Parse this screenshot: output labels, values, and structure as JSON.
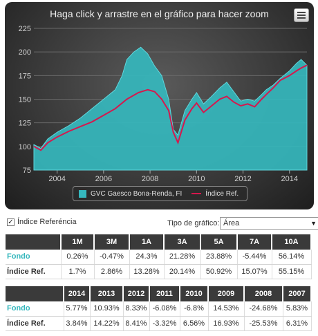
{
  "chart": {
    "title": "Haga click y arrastre en el gráfico para hacer zoom",
    "menu_icon": "hamburger-menu-icon",
    "legend": {
      "series1": "GVC Gaesco Bona-Renda, FI",
      "series2": "Índice Ref."
    },
    "colors": {
      "fund": "#35b7bd",
      "index": "#d6174d"
    }
  },
  "chart_data": {
    "type": "area",
    "y_ticks": [
      "75",
      "100",
      "125",
      "150",
      "175",
      "200",
      "225"
    ],
    "x_ticks": [
      "2004",
      "2006",
      "2008",
      "2010",
      "2012",
      "2014"
    ],
    "ylim": [
      75,
      225
    ],
    "xlim": [
      2003.0,
      2014.75
    ],
    "grid": true,
    "legend_position": "bottom-center",
    "series": [
      {
        "name": "GVC Gaesco Bona-Renda, FI",
        "type": "area",
        "points": [
          [
            2003.0,
            102
          ],
          [
            2003.3,
            98
          ],
          [
            2003.6,
            108
          ],
          [
            2004.0,
            115
          ],
          [
            2004.5,
            122
          ],
          [
            2005.0,
            130
          ],
          [
            2005.5,
            140
          ],
          [
            2006.0,
            150
          ],
          [
            2006.5,
            160
          ],
          [
            2006.8,
            175
          ],
          [
            2007.0,
            192
          ],
          [
            2007.3,
            200
          ],
          [
            2007.6,
            205
          ],
          [
            2007.9,
            198
          ],
          [
            2008.2,
            185
          ],
          [
            2008.5,
            175
          ],
          [
            2008.8,
            150
          ],
          [
            2009.0,
            118
          ],
          [
            2009.2,
            112
          ],
          [
            2009.5,
            138
          ],
          [
            2009.8,
            150
          ],
          [
            2010.0,
            157
          ],
          [
            2010.3,
            145
          ],
          [
            2010.6,
            152
          ],
          [
            2011.0,
            162
          ],
          [
            2011.3,
            168
          ],
          [
            2011.6,
            158
          ],
          [
            2011.9,
            148
          ],
          [
            2012.2,
            150
          ],
          [
            2012.5,
            148
          ],
          [
            2012.8,
            155
          ],
          [
            2013.0,
            160
          ],
          [
            2013.3,
            165
          ],
          [
            2013.6,
            172
          ],
          [
            2014.0,
            180
          ],
          [
            2014.3,
            188
          ],
          [
            2014.5,
            192
          ],
          [
            2014.75,
            186
          ]
        ]
      },
      {
        "name": "Índice Ref.",
        "type": "line",
        "points": [
          [
            2003.0,
            100
          ],
          [
            2003.3,
            96
          ],
          [
            2003.6,
            104
          ],
          [
            2004.0,
            110
          ],
          [
            2004.5,
            116
          ],
          [
            2005.0,
            121
          ],
          [
            2005.5,
            126
          ],
          [
            2006.0,
            133
          ],
          [
            2006.5,
            140
          ],
          [
            2007.0,
            150
          ],
          [
            2007.5,
            157
          ],
          [
            2007.9,
            160
          ],
          [
            2008.2,
            158
          ],
          [
            2008.5,
            150
          ],
          [
            2008.8,
            138
          ],
          [
            2009.0,
            115
          ],
          [
            2009.2,
            104
          ],
          [
            2009.5,
            128
          ],
          [
            2009.8,
            140
          ],
          [
            2010.0,
            146
          ],
          [
            2010.3,
            136
          ],
          [
            2010.6,
            142
          ],
          [
            2011.0,
            150
          ],
          [
            2011.3,
            153
          ],
          [
            2011.6,
            147
          ],
          [
            2011.9,
            143
          ],
          [
            2012.2,
            145
          ],
          [
            2012.5,
            142
          ],
          [
            2012.8,
            150
          ],
          [
            2013.0,
            155
          ],
          [
            2013.3,
            162
          ],
          [
            2013.6,
            170
          ],
          [
            2014.0,
            175
          ],
          [
            2014.3,
            180
          ],
          [
            2014.5,
            183
          ],
          [
            2014.75,
            186
          ]
        ]
      }
    ]
  },
  "controls": {
    "checkbox_label": "Índice Referéncia",
    "checkbox_checked": true,
    "chart_type_label": "Tipo de gráfico:",
    "chart_type_value": "Área"
  },
  "table1": {
    "headers": [
      "",
      "1M",
      "3M",
      "1A",
      "3A",
      "5A",
      "7A",
      "10A"
    ],
    "rows": [
      {
        "label": "Fondo",
        "values": [
          "0.26%",
          "-0.47%",
          "24.3%",
          "21.28%",
          "23.88%",
          "-5.44%",
          "56.14%"
        ]
      },
      {
        "label": "Índice Ref.",
        "values": [
          "1.7%",
          "2.86%",
          "13.28%",
          "20.14%",
          "50.92%",
          "15.07%",
          "55.15%"
        ]
      }
    ]
  },
  "table2": {
    "headers": [
      "",
      "2014",
      "2013",
      "2012",
      "2011",
      "2010",
      "2009",
      "2008",
      "2007"
    ],
    "rows": [
      {
        "label": "Fondo",
        "values": [
          "5.77%",
          "10.93%",
          "8.33%",
          "-6.08%",
          "-6.8%",
          "14.53%",
          "-24.68%",
          "5.83%"
        ]
      },
      {
        "label": "Índice Ref.",
        "values": [
          "3.84%",
          "14.22%",
          "8.41%",
          "-3.32%",
          "6.56%",
          "16.93%",
          "-25.53%",
          "6.31%"
        ]
      }
    ]
  }
}
